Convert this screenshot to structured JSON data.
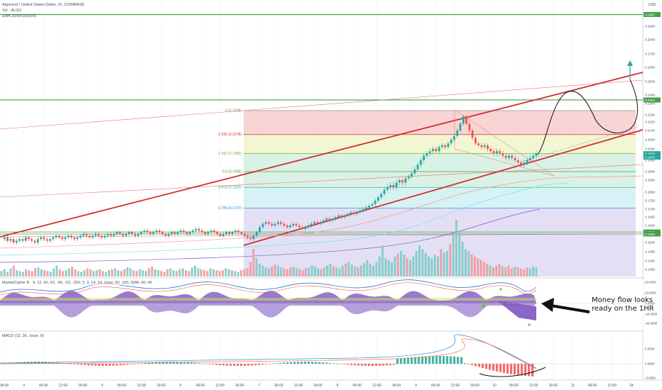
{
  "header": {
    "title": "Algorand / United States Dollar, 1h, COINBASE",
    "volume": "Vol · ALGO",
    "ema": "EMA 20/50/100/200"
  },
  "indicators": {
    "market_cipher": "MarketCipher B · 9, 12, 50, 53, -60, -53, -200, 3, 3, 14, 14, close, 60, 100, SMA, 60, 40",
    "macd": "MACD (12, 26, close, 9)"
  },
  "annotation": {
    "text": "Money flow looks ready on the 1HR"
  },
  "colors": {
    "bull": "#26a69a",
    "bear": "#ef5350",
    "channel": "#d32f2f",
    "level": "#43a047",
    "fib_red": "#f5c6c6",
    "fib_yellow": "#eef3c4",
    "fib_green": "#cdeedd",
    "fib_teal": "#c9eef0",
    "fib_blue": "#cfe0f3",
    "fib_purple": "#d9d6f3",
    "wave_purple": "#7e57c2",
    "up_arrow": "#26a69a"
  },
  "chart_data": {
    "type": "candlestick",
    "symbol": "ALGOUSD",
    "timeframe": "1h",
    "exchange": "COINBASE",
    "currency": "USD",
    "y_axis_ticks": [
      0.29,
      0.28,
      0.27,
      0.26,
      0.25,
      0.24,
      0.23,
      0.22,
      0.215,
      0.21,
      0.205,
      0.2,
      0.195,
      0.19,
      0.185,
      0.18,
      0.175,
      0.17,
      0.165,
      0.16,
      0.155,
      0.15,
      0.145,
      0.14,
      0.135
    ],
    "price_labels": [
      {
        "text": "0.2987",
        "value": 0.2987,
        "color": "#43a047"
      },
      {
        "text": "0.2342",
        "value": 0.2342,
        "color": "#43a047"
      },
      {
        "text": "0.1979",
        "value": 0.1979,
        "color": "#26a69a"
      },
      {
        "text": "0.1964",
        "value": 0.1964,
        "color": "#26a69a"
      },
      {
        "text": "0.1562",
        "value": 0.1562,
        "color": "#43a047"
      },
      {
        "text": "0.1550",
        "value": 0.155,
        "color": "#43a047"
      }
    ],
    "x_axis_ticks": [
      "18:00",
      "4",
      "06:00",
      "12:00",
      "18:00",
      "5",
      "06:00",
      "12:00",
      "18:00",
      "6",
      "06:00",
      "12:00",
      "18:00",
      "7",
      "06:00",
      "12:00",
      "18:00",
      "8",
      "06:00",
      "12:00",
      "18:00",
      "9",
      "06:00",
      "12:00",
      "18:00",
      "10",
      "06:00",
      "12:00",
      "18:00",
      "11",
      "06:00",
      "12:00",
      "18:"
    ],
    "fibonacci": [
      {
        "label": "0 (0.2238)",
        "ratio": 0,
        "price": 0.2238
      },
      {
        "label": "0.236 (0.2078)",
        "ratio": 0.236,
        "price": 0.2078
      },
      {
        "label": "0.382 (0.1980)",
        "ratio": 0.382,
        "price": 0.198
      },
      {
        "label": "0.5 (0.1900)",
        "ratio": 0.5,
        "price": 0.19
      },
      {
        "label": "0.618 (0.1820)",
        "ratio": 0.618,
        "price": 0.182
      },
      {
        "label": "0.786 (0.1707)",
        "ratio": 0.786,
        "price": 0.1707
      }
    ],
    "horizontal_levels": [
      0.2987,
      0.2342,
      0.1562,
      0.155
    ],
    "ohlc_approx": [
      0.152,
      0.153,
      0.151,
      0.152,
      0.15,
      0.151,
      0.152,
      0.151,
      0.153,
      0.152,
      0.151,
      0.15,
      0.152,
      0.153,
      0.152,
      0.151,
      0.152,
      0.153,
      0.154,
      0.153,
      0.152,
      0.153,
      0.154,
      0.153,
      0.152,
      0.153,
      0.154,
      0.155,
      0.154,
      0.153,
      0.154,
      0.155,
      0.154,
      0.153,
      0.154,
      0.155,
      0.154,
      0.155,
      0.156,
      0.155,
      0.154,
      0.155,
      0.156,
      0.155,
      0.154,
      0.155,
      0.156,
      0.157,
      0.156,
      0.155,
      0.156,
      0.157,
      0.156,
      0.155,
      0.154,
      0.155,
      0.156,
      0.155,
      0.156,
      0.157,
      0.156,
      0.155,
      0.156,
      0.157,
      0.158,
      0.157,
      0.156,
      0.155,
      0.156,
      0.157,
      0.156,
      0.155,
      0.154,
      0.155,
      0.156,
      0.155,
      0.156,
      0.157,
      0.156,
      0.155,
      0.154,
      0.153,
      0.152,
      0.154,
      0.156,
      0.159,
      0.161,
      0.162,
      0.161,
      0.16,
      0.161,
      0.162,
      0.161,
      0.16,
      0.159,
      0.16,
      0.161,
      0.16,
      0.159,
      0.158,
      0.159,
      0.16,
      0.161,
      0.162,
      0.161,
      0.162,
      0.163,
      0.164,
      0.163,
      0.164,
      0.165,
      0.166,
      0.165,
      0.166,
      0.167,
      0.168,
      0.167,
      0.168,
      0.169,
      0.17,
      0.171,
      0.172,
      0.173,
      0.175,
      0.177,
      0.179,
      0.181,
      0.182,
      0.183,
      0.182,
      0.184,
      0.185,
      0.184,
      0.186,
      0.187,
      0.189,
      0.191,
      0.193,
      0.195,
      0.197,
      0.198,
      0.199,
      0.2,
      0.199,
      0.201,
      0.202,
      0.201,
      0.203,
      0.205,
      0.207,
      0.21,
      0.214,
      0.219,
      0.214,
      0.21,
      0.206,
      0.203,
      0.202,
      0.201,
      0.202,
      0.2,
      0.199,
      0.198,
      0.199,
      0.198,
      0.197,
      0.196,
      0.197,
      0.196,
      0.195,
      0.194,
      0.193,
      0.194,
      0.195,
      0.196,
      0.197,
      0.198
    ],
    "volume_approx": [
      6,
      8,
      5,
      9,
      12,
      7,
      6,
      5,
      8,
      7,
      6,
      9,
      10,
      8,
      7,
      6,
      5,
      9,
      12,
      8,
      6,
      7,
      9,
      11,
      8,
      6,
      5,
      7,
      9,
      8,
      6,
      7,
      8,
      6,
      5,
      7,
      8,
      9,
      7,
      6,
      8,
      10,
      9,
      7,
      6,
      8,
      7,
      6,
      9,
      11,
      8,
      7,
      6,
      5,
      8,
      9,
      7,
      6,
      8,
      9,
      7,
      6,
      10,
      12,
      9,
      8,
      7,
      6,
      9,
      8,
      7,
      6,
      7,
      9,
      8,
      7,
      6,
      5,
      7,
      8,
      9,
      16,
      30,
      20,
      14,
      12,
      10,
      9,
      11,
      13,
      12,
      10,
      9,
      8,
      10,
      11,
      9,
      8,
      7,
      9,
      10,
      12,
      11,
      9,
      8,
      10,
      12,
      14,
      11,
      10,
      9,
      12,
      14,
      16,
      13,
      11,
      10,
      12,
      15,
      18,
      14,
      12,
      16,
      22,
      34,
      20,
      18,
      16,
      22,
      25,
      28,
      24,
      20,
      18,
      22,
      28,
      34,
      30,
      26,
      22,
      20,
      24,
      22,
      30,
      26,
      28,
      35,
      45,
      62,
      50,
      38,
      30,
      28,
      24,
      22,
      20,
      18,
      16,
      14,
      12,
      10,
      12,
      14,
      11,
      10,
      12,
      9,
      11,
      10,
      9,
      8,
      10,
      9,
      11,
      10
    ]
  }
}
